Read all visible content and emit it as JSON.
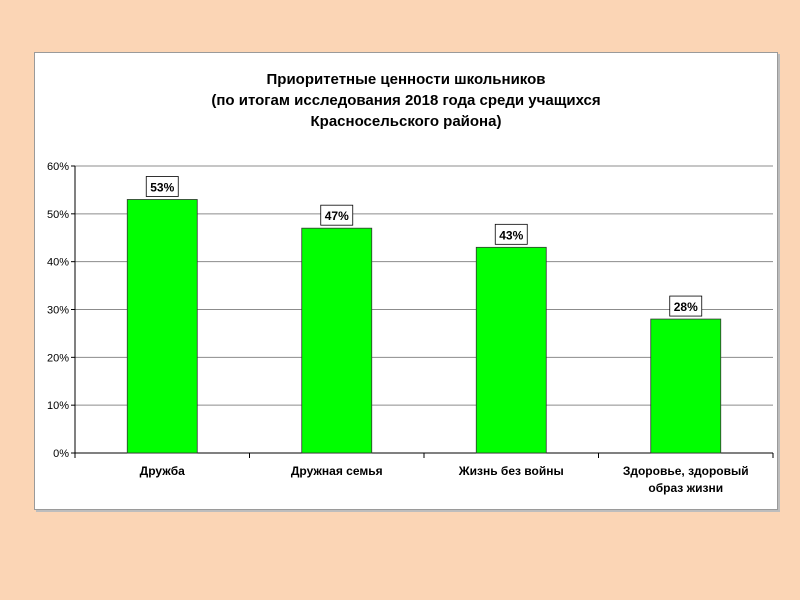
{
  "chart_data": {
    "type": "bar",
    "title_lines": [
      "Приоритетные ценности школьников",
      "(по итогам исследования 2018 года среди учащихся",
      "Красносельского района)"
    ],
    "categories": [
      [
        "Дружба"
      ],
      [
        "Дружная семья"
      ],
      [
        "Жизнь без войны"
      ],
      [
        "Здоровье, здоровый",
        "образ жизни"
      ]
    ],
    "values": [
      53,
      47,
      43,
      28
    ],
    "data_labels": [
      "53%",
      "47%",
      "43%",
      "28%"
    ],
    "yticks": [
      "0%",
      "10%",
      "20%",
      "30%",
      "40%",
      "50%",
      "60%"
    ],
    "ylim": [
      0,
      60
    ],
    "bar_color": "#00ff00",
    "gridlines": true,
    "legend": "none"
  }
}
